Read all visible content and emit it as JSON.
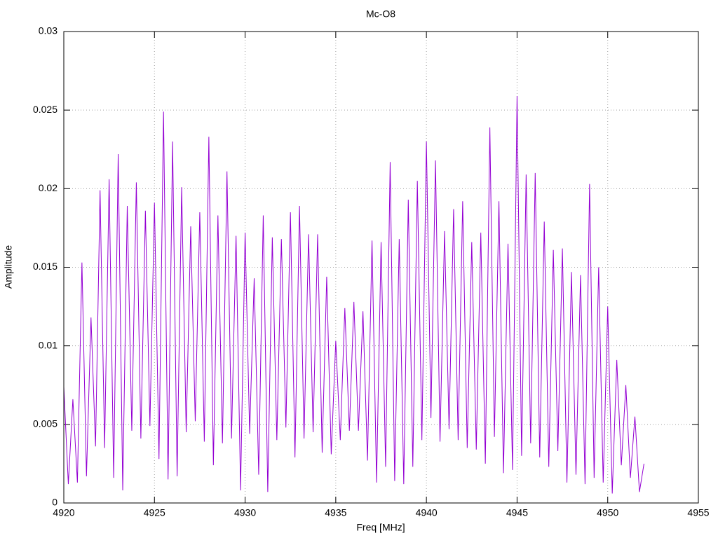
{
  "chart_data": {
    "type": "line",
    "title": "Mc-O8",
    "xlabel": "Freq [MHz]",
    "ylabel": "Amplitude",
    "color": "#9400d3",
    "grid": true,
    "xlim": [
      4920,
      4955
    ],
    "xticks": [
      4920,
      4925,
      4930,
      4935,
      4940,
      4945,
      4950,
      4955
    ],
    "ylim": [
      0,
      0.03
    ],
    "yticks": [
      0,
      0.005,
      0.01,
      0.015,
      0.02,
      0.025,
      0.03
    ],
    "x": [
      4920,
      4920.25,
      4920.5,
      4920.75,
      4921,
      4921.25,
      4921.5,
      4921.75,
      4922,
      4922.25,
      4922.5,
      4922.75,
      4923,
      4923.25,
      4923.5,
      4923.75,
      4924,
      4924.25,
      4924.5,
      4924.75,
      4925,
      4925.25,
      4925.5,
      4925.75,
      4926,
      4926.25,
      4926.5,
      4926.75,
      4927,
      4927.25,
      4927.5,
      4927.75,
      4928,
      4928.25,
      4928.5,
      4928.75,
      4929,
      4929.25,
      4929.5,
      4929.75,
      4930,
      4930.25,
      4930.5,
      4930.75,
      4931,
      4931.25,
      4931.5,
      4931.75,
      4932,
      4932.25,
      4932.5,
      4932.75,
      4933,
      4933.25,
      4933.5,
      4933.75,
      4934,
      4934.25,
      4934.5,
      4934.75,
      4935,
      4935.25,
      4935.5,
      4935.75,
      4936,
      4936.25,
      4936.5,
      4936.75,
      4937,
      4937.25,
      4937.5,
      4937.75,
      4938,
      4938.25,
      4938.5,
      4938.75,
      4939,
      4939.25,
      4939.5,
      4939.75,
      4940,
      4940.25,
      4940.5,
      4940.75,
      4941,
      4941.25,
      4941.5,
      4941.75,
      4942,
      4942.25,
      4942.5,
      4942.75,
      4943,
      4943.25,
      4943.5,
      4943.75,
      4944,
      4944.25,
      4944.5,
      4944.75,
      4945,
      4945.25,
      4945.5,
      4945.75,
      4946,
      4946.25,
      4946.5,
      4946.75,
      4947,
      4947.25,
      4947.5,
      4947.75,
      4948,
      4948.25,
      4948.5,
      4948.75,
      4949,
      4949.25,
      4949.5,
      4949.75,
      4950,
      4950.25,
      4950.5,
      4950.75,
      4951,
      4951.25,
      4951.5,
      4951.75,
      4952
    ],
    "values": [
      0.0074,
      0.0012,
      0.0066,
      0.0013,
      0.0153,
      0.0017,
      0.0118,
      0.0036,
      0.0199,
      0.0035,
      0.0206,
      0.0016,
      0.0222,
      0.0008,
      0.0189,
      0.0046,
      0.0204,
      0.0041,
      0.0186,
      0.0049,
      0.0191,
      0.0028,
      0.0249,
      0.0015,
      0.023,
      0.0017,
      0.0201,
      0.0045,
      0.0176,
      0.0052,
      0.0185,
      0.0039,
      0.0233,
      0.0024,
      0.0183,
      0.0038,
      0.0211,
      0.0041,
      0.017,
      0.0008,
      0.0172,
      0.0044,
      0.0143,
      0.0018,
      0.0183,
      0.0007,
      0.0169,
      0.004,
      0.0168,
      0.0048,
      0.0185,
      0.0029,
      0.0189,
      0.0041,
      0.0171,
      0.0045,
      0.0171,
      0.0032,
      0.0144,
      0.0031,
      0.0103,
      0.004,
      0.0124,
      0.0046,
      0.0128,
      0.0046,
      0.0122,
      0.0027,
      0.0167,
      0.0013,
      0.0166,
      0.0023,
      0.0217,
      0.0014,
      0.0168,
      0.0012,
      0.0193,
      0.0023,
      0.0205,
      0.004,
      0.023,
      0.0054,
      0.0218,
      0.0039,
      0.0173,
      0.0047,
      0.0187,
      0.004,
      0.0192,
      0.0035,
      0.0166,
      0.0034,
      0.0172,
      0.0025,
      0.0239,
      0.0042,
      0.0192,
      0.0019,
      0.0165,
      0.0021,
      0.0259,
      0.003,
      0.0209,
      0.0038,
      0.021,
      0.0029,
      0.0179,
      0.0023,
      0.0161,
      0.0033,
      0.0162,
      0.0013,
      0.0147,
      0.0018,
      0.0145,
      0.0012,
      0.0203,
      0.0016,
      0.015,
      0.0013,
      0.0125,
      0.0006,
      0.0091,
      0.0024,
      0.0075,
      0.0016,
      0.0055,
      0.0007,
      0.0025
    ]
  }
}
